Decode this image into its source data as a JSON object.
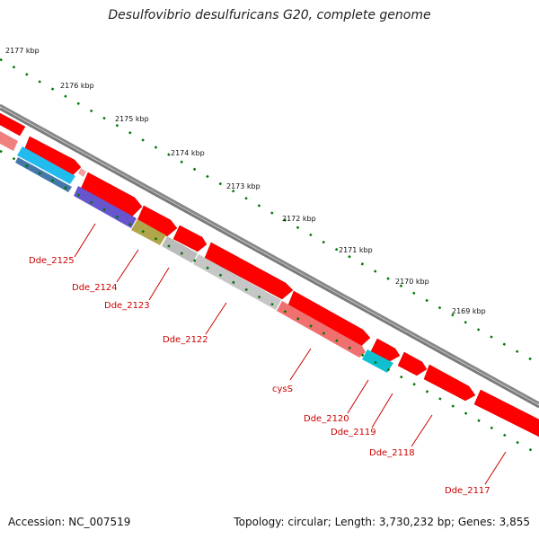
{
  "header": {
    "title": "Desulfovibrio desulfuricans G20, complete genome"
  },
  "footer": {
    "accession": "Accession: NC_007519",
    "summary": "Topology: circular; Length: 3,730,232 bp; Genes: 3,855"
  },
  "colors": {
    "backbone": "#808080",
    "cds": "#ff0000",
    "tick": "#007700",
    "label": "#cc0000"
  },
  "scale": {
    "ticks": [
      "2177 kbp",
      "2176 kbp",
      "2175 kbp",
      "2174 kbp",
      "2173 kbp",
      "2172 kbp",
      "2171 kbp",
      "2170 kbp",
      "2169 kbp"
    ]
  },
  "genes": [
    {
      "label": "Dde_2125",
      "color": "#6655cc"
    },
    {
      "label": "Dde_2124",
      "color": "#b2a64c"
    },
    {
      "label": "Dde_2123",
      "color": "#bbbbbb"
    },
    {
      "label": "Dde_2122",
      "color": "#c2c2c2"
    },
    {
      "label": "cysS",
      "color": "#f07070"
    },
    {
      "label": "Dde_2120",
      "color": "#11c0d0"
    },
    {
      "label": "Dde_2119",
      "color": ""
    },
    {
      "label": "Dde_2118",
      "color": ""
    },
    {
      "label": "Dde_2117",
      "color": ""
    }
  ]
}
